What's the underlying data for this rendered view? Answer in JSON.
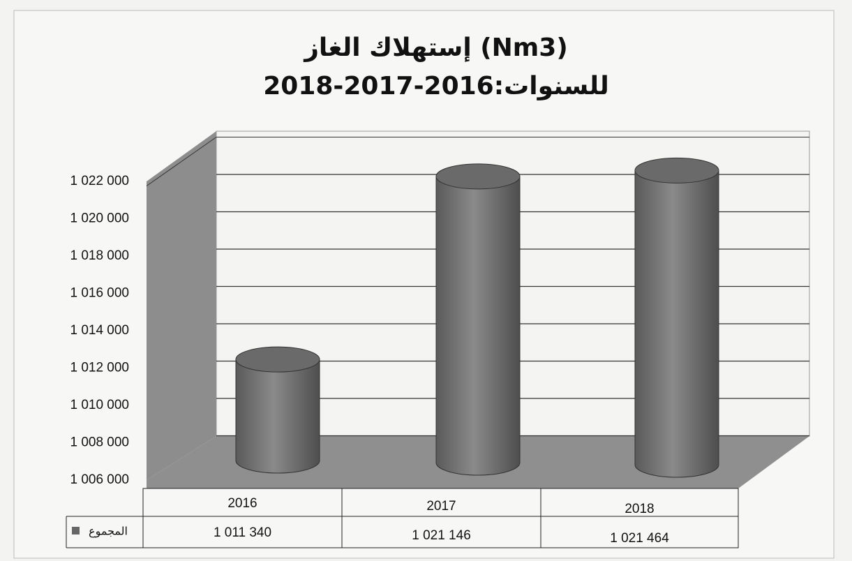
{
  "chart_data": {
    "type": "bar3d_cylinder",
    "title": "إستهلاك الغاز (Nm3)",
    "subtitle": "للسنوات:2016-2017-2018",
    "categories": [
      "2016",
      "2017",
      "2018"
    ],
    "series": [
      {
        "name": "المجموع",
        "color": "#777777",
        "values": [
          1011340,
          1021146,
          1021464
        ],
        "value_labels": [
          "1 011 340",
          "1 021 146",
          "1 021 464"
        ]
      }
    ],
    "ylim": [
      1006000,
      1024000
    ],
    "yticks": [
      {
        "value": 1006000,
        "label": "1 006 000"
      },
      {
        "value": 1008000,
        "label": "1 008 000"
      },
      {
        "value": 1010000,
        "label": "1 010 000"
      },
      {
        "value": 1012000,
        "label": "1 012 000"
      },
      {
        "value": 1014000,
        "label": "1 014 000"
      },
      {
        "value": 1016000,
        "label": "1 016 000"
      },
      {
        "value": 1018000,
        "label": "1 018 000"
      },
      {
        "value": 1020000,
        "label": "1 020 000"
      },
      {
        "value": 1022000,
        "label": "1 022 000"
      }
    ],
    "grid": true,
    "data_table": true
  }
}
